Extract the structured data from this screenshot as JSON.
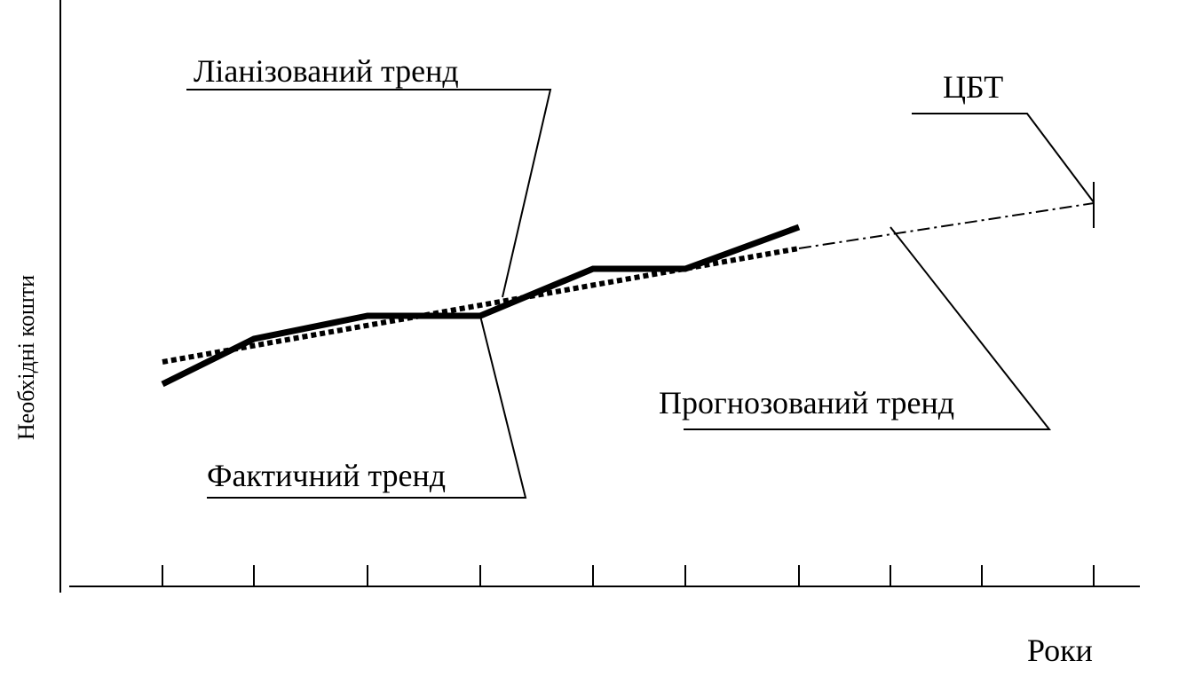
{
  "labels": {
    "linearized_trend": "Ліанізований тренд",
    "target": "ЦБТ",
    "forecast_trend": "Прогнозований тренд",
    "actual_trend": "Фактичний тренд",
    "y_axis": "Необхідні кошти",
    "x_axis": "Роки"
  }
}
